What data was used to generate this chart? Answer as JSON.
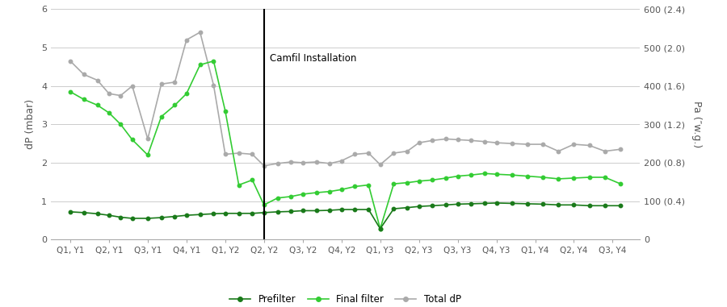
{
  "x_labels": [
    "Q1, Y1",
    "Q2, Y1",
    "Q3, Y1",
    "Q4, Y1",
    "Q1, Y2",
    "Q2, Y2",
    "Q3, Y2",
    "Q4, Y2",
    "Q1, Y3",
    "Q2, Y3",
    "Q3, Y3",
    "Q4, Y3",
    "Q1, Y4",
    "Q2, Y4",
    "Q3, Y4"
  ],
  "vline_x": 5,
  "vline_label": "Camfil Installation",
  "prefilter_color": "#1a7a1a",
  "final_filter_color": "#33cc33",
  "total_dp_color": "#aaaaaa",
  "ylim": [
    0,
    6
  ],
  "ylabel_left": "dP (mbar)",
  "ylabel_right": "Pa (″w.g.)",
  "right_ytick_labels": [
    "0",
    "100 (0.4)",
    "200 (0.8)",
    "300 (1.2)",
    "400 (1.6)",
    "500 (2.0)",
    "600 (2.4)"
  ],
  "bg_color": "#ffffff",
  "grid_color": "#cccccc",
  "x_pf": [
    0,
    0.35,
    0.7,
    1.0,
    1.3,
    1.6,
    2.0,
    2.35,
    2.7,
    3.0,
    3.35,
    3.7,
    4.0,
    4.35,
    4.7,
    5.0,
    5.35,
    5.7,
    6.0,
    6.35,
    6.7,
    7.0,
    7.35,
    7.7,
    8.0,
    8.35,
    8.7,
    9.0,
    9.35,
    9.7,
    10.0,
    10.35,
    10.7,
    11.0,
    11.4,
    11.8,
    12.2,
    12.6,
    13.0,
    13.4,
    13.8,
    14.2
  ],
  "y_pf": [
    0.72,
    0.7,
    0.67,
    0.63,
    0.58,
    0.55,
    0.55,
    0.57,
    0.6,
    0.63,
    0.65,
    0.67,
    0.68,
    0.68,
    0.68,
    0.7,
    0.72,
    0.73,
    0.75,
    0.75,
    0.76,
    0.78,
    0.78,
    0.78,
    0.28,
    0.8,
    0.83,
    0.86,
    0.88,
    0.9,
    0.92,
    0.93,
    0.94,
    0.95,
    0.94,
    0.93,
    0.92,
    0.9,
    0.9,
    0.88,
    0.88,
    0.88
  ],
  "x_ff": [
    0,
    0.35,
    0.7,
    1.0,
    1.3,
    1.6,
    2.0,
    2.35,
    2.7,
    3.0,
    3.35,
    3.7,
    4.0,
    4.35,
    4.7,
    5.0,
    5.35,
    5.7,
    6.0,
    6.35,
    6.7,
    7.0,
    7.35,
    7.7,
    8.0,
    8.35,
    8.7,
    9.0,
    9.35,
    9.7,
    10.0,
    10.35,
    10.7,
    11.0,
    11.4,
    11.8,
    12.2,
    12.6,
    13.0,
    13.4,
    13.8,
    14.2
  ],
  "y_ff": [
    3.85,
    3.65,
    3.5,
    3.3,
    3.0,
    2.6,
    2.2,
    3.2,
    3.5,
    3.8,
    4.55,
    4.65,
    3.35,
    1.42,
    1.55,
    0.9,
    1.08,
    1.12,
    1.18,
    1.22,
    1.25,
    1.3,
    1.38,
    1.42,
    0.28,
    1.45,
    1.48,
    1.52,
    1.55,
    1.6,
    1.65,
    1.68,
    1.72,
    1.7,
    1.68,
    1.65,
    1.62,
    1.58,
    1.6,
    1.62,
    1.62,
    1.45
  ],
  "x_tdp": [
    0,
    0.35,
    0.7,
    1.0,
    1.3,
    1.6,
    2.0,
    2.35,
    2.7,
    3.0,
    3.35,
    3.7,
    4.0,
    4.35,
    4.7,
    5.0,
    5.35,
    5.7,
    6.0,
    6.35,
    6.7,
    7.0,
    7.35,
    7.7,
    8.0,
    8.35,
    8.7,
    9.0,
    9.35,
    9.7,
    10.0,
    10.35,
    10.7,
    11.0,
    11.4,
    11.8,
    12.2,
    12.6,
    13.0,
    13.4,
    13.8,
    14.2
  ],
  "y_tdp": [
    4.65,
    4.3,
    4.15,
    3.8,
    3.75,
    4.0,
    2.62,
    4.05,
    4.1,
    5.2,
    5.4,
    4.02,
    2.22,
    2.25,
    2.22,
    1.92,
    1.98,
    2.02,
    2.0,
    2.02,
    1.98,
    2.05,
    2.22,
    2.25,
    1.95,
    2.25,
    2.3,
    2.52,
    2.58,
    2.62,
    2.6,
    2.58,
    2.55,
    2.52,
    2.5,
    2.48,
    2.48,
    2.3,
    2.48,
    2.45,
    2.3,
    2.35
  ]
}
